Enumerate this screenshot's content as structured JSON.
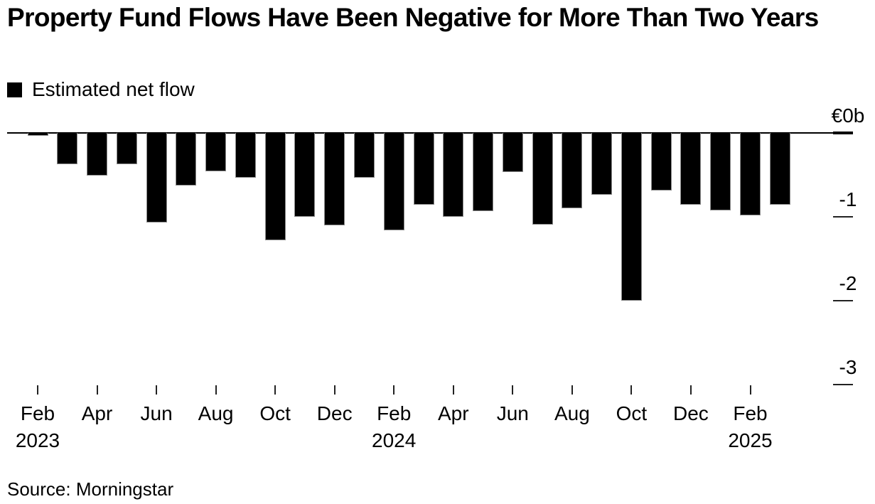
{
  "title": "Property Fund Flows Have Been Negative for More Than Two Years",
  "legend": {
    "label": "Estimated net flow",
    "swatch_color": "#000000"
  },
  "source": "Source: Morningstar",
  "colors": {
    "bar": "#000000",
    "axis": "#000000",
    "tick": "#222222",
    "background": "#ffffff"
  },
  "chart_data": {
    "type": "bar",
    "title": "Property Fund Flows Have Been Negative for More Than Two Years",
    "series_name": "Estimated net flow",
    "unit": "EUR billions",
    "categories": [
      "Feb 2023",
      "Mar 2023",
      "Apr 2023",
      "May 2023",
      "Jun 2023",
      "Jul 2023",
      "Aug 2023",
      "Sep 2023",
      "Oct 2023",
      "Nov 2023",
      "Dec 2023",
      "Jan 2024",
      "Feb 2024",
      "Mar 2024",
      "Apr 2024",
      "May 2024",
      "Jun 2024",
      "Jul 2024",
      "Aug 2024",
      "Sep 2024",
      "Oct 2024",
      "Nov 2024",
      "Dec 2024",
      "Jan 2025",
      "Feb 2025",
      "Mar 2025"
    ],
    "values": [
      -0.03,
      -0.37,
      -0.51,
      -0.37,
      -1.07,
      -0.63,
      -0.46,
      -0.53,
      -1.28,
      -1.0,
      -1.1,
      -0.53,
      -1.16,
      -0.86,
      -1.0,
      -0.93,
      -0.47,
      -1.09,
      -0.9,
      -0.74,
      -2.0,
      -0.69,
      -0.86,
      -0.92,
      -0.98,
      -0.86
    ],
    "xlabel": "",
    "ylabel": "€0b",
    "ylim": [
      -3.4,
      0
    ],
    "grid": false,
    "legend_position": "top-left",
    "y_ticks": [
      {
        "label": "€0b",
        "value": 0
      },
      {
        "label": "-1",
        "value": -1
      },
      {
        "label": "-2",
        "value": -2
      },
      {
        "label": "-3",
        "value": -3
      }
    ],
    "x_tick_labels": [
      "Feb",
      "Apr",
      "Jun",
      "Aug",
      "Oct",
      "Dec",
      "Feb",
      "Apr",
      "Jun",
      "Aug",
      "Oct",
      "Dec",
      "Feb"
    ],
    "x_year_labels": [
      {
        "label": "2023",
        "category_index": 0
      },
      {
        "label": "2024",
        "category_index": 12
      },
      {
        "label": "2025",
        "category_index": 24
      }
    ]
  }
}
